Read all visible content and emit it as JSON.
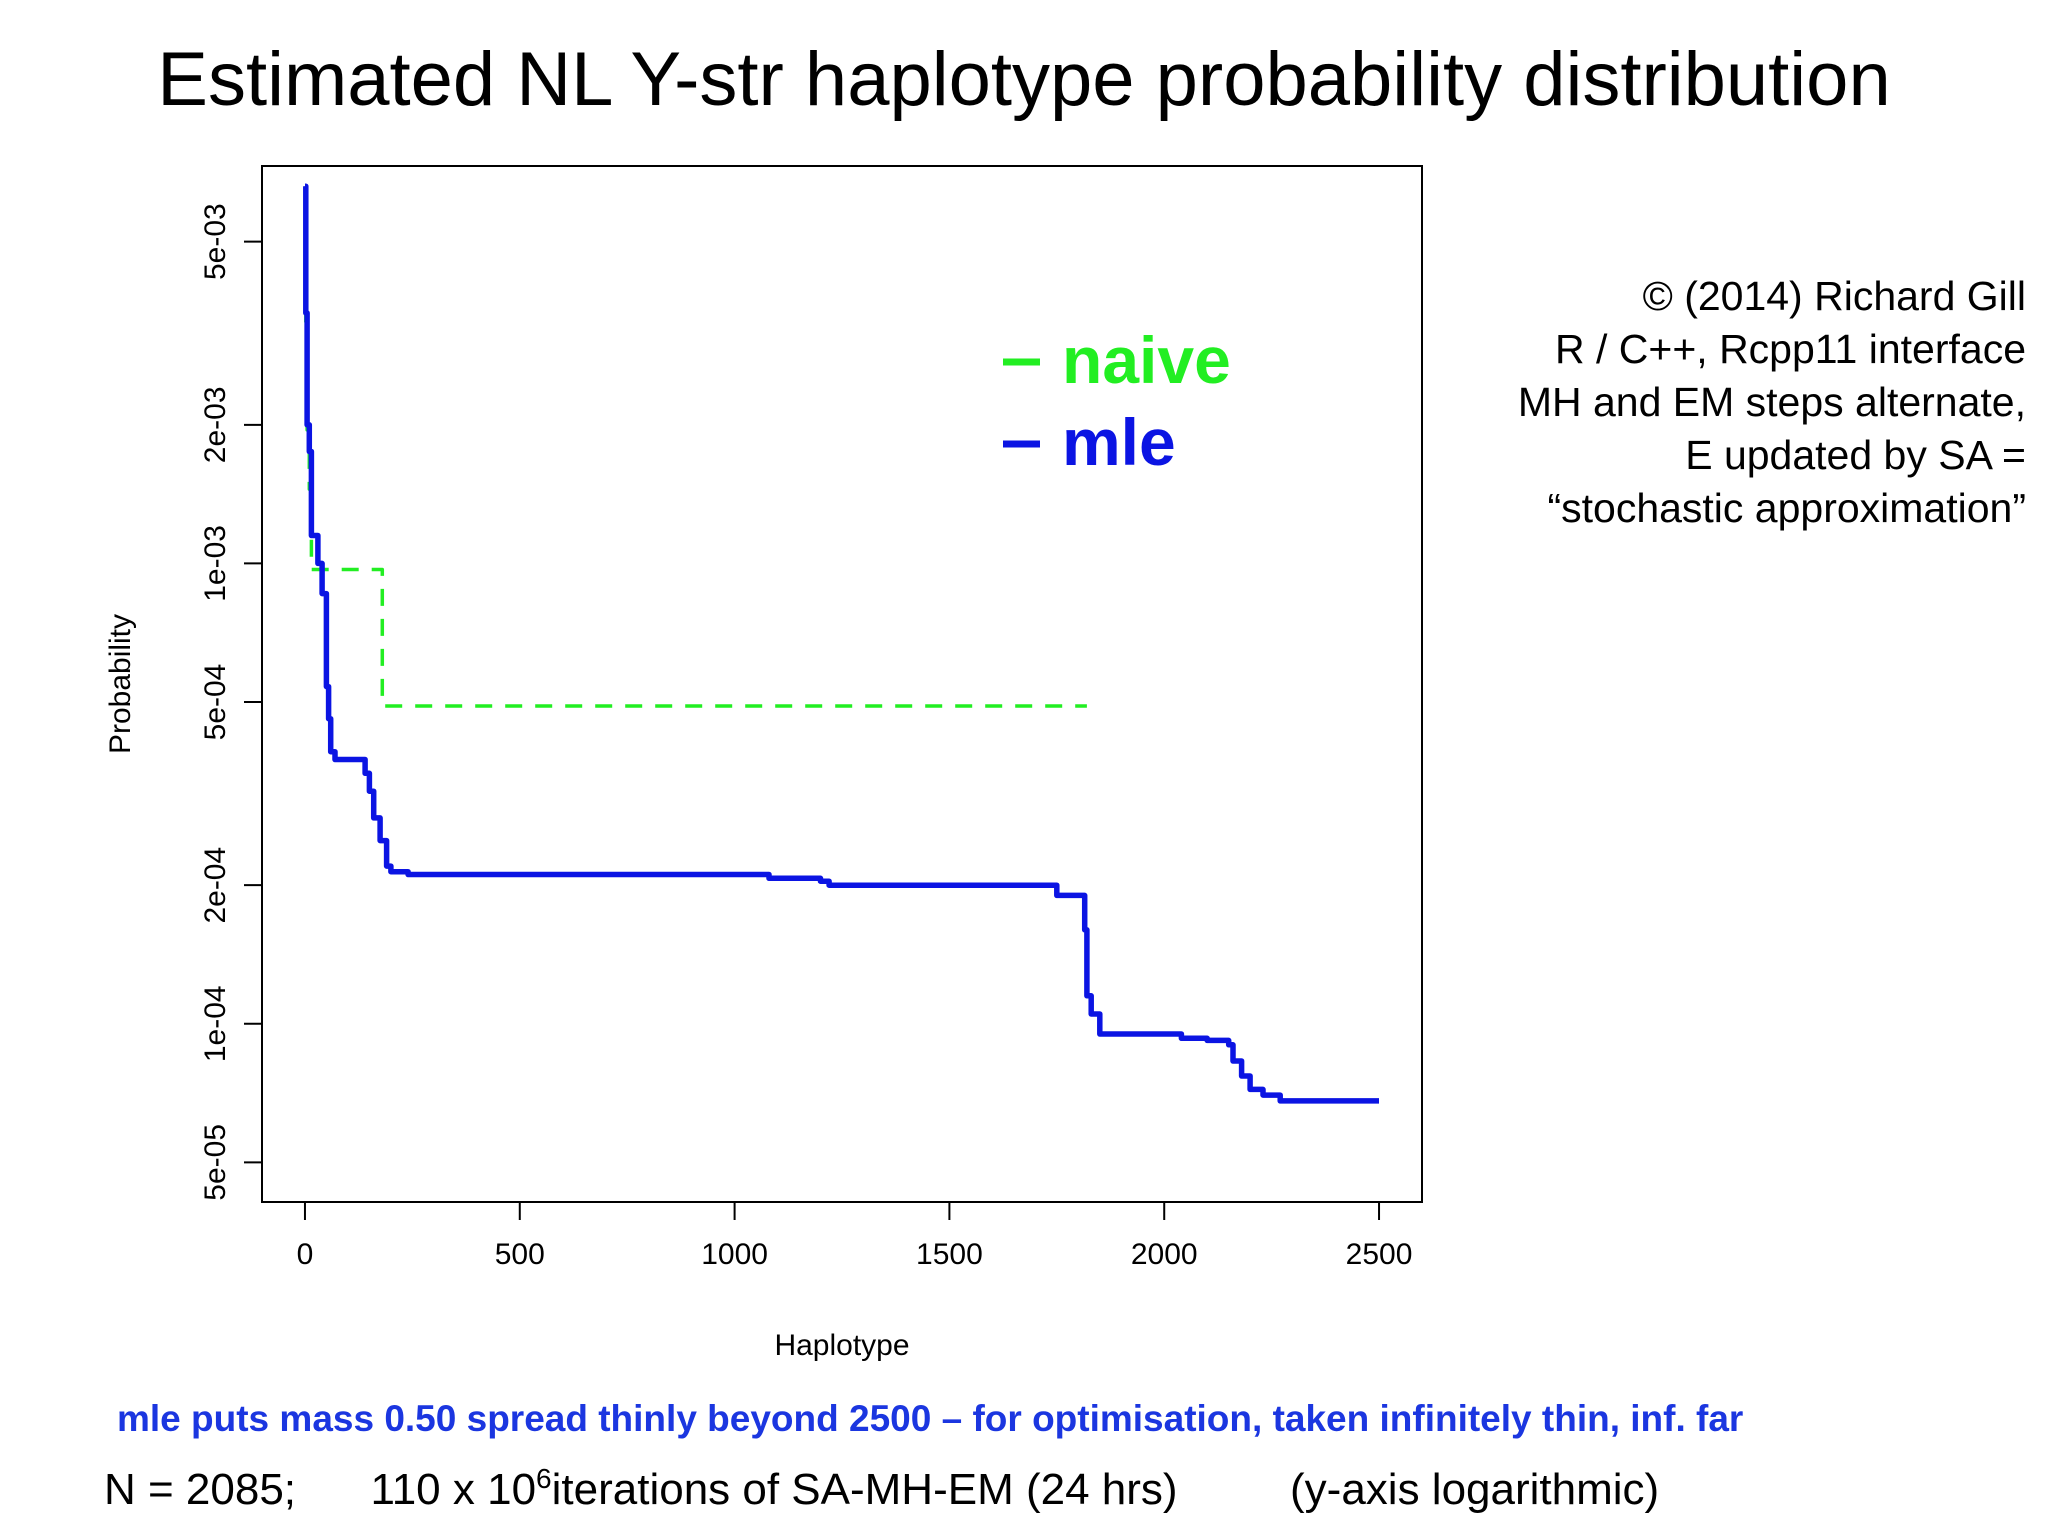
{
  "title": "Estimated NL Y-str haplotype probability distribution",
  "credits": [
    "© (2014) Richard Gill",
    "R / C++, Rcpp11 interface",
    "MH and EM steps alternate,",
    "E updated by SA =",
    "“stochastic approximation”"
  ],
  "note": "mle puts mass 0.50 spread thinly beyond 2500 – for optimisation, taken infinitely thin, inf. far",
  "footer": {
    "part1": "N = 2085;",
    "part2": "110 x 10",
    "exponent": "6",
    "part3": " iterations of SA-MH-EM (24 hrs)",
    "part4": "(y-axis logarithmic)"
  },
  "colors": {
    "naive": "#22ee22",
    "mle": "#0b14e3",
    "note": "#1b36e0"
  },
  "chart_data": {
    "type": "line",
    "xlabel": "Haplotype",
    "ylabel": "Probability",
    "xlim": [
      -100,
      2600
    ],
    "ylim": [
      4.1e-05,
      0.0073
    ],
    "y_scale": "log",
    "x_ticks": [
      0,
      500,
      1000,
      1500,
      2000,
      2500
    ],
    "x_tick_labels": [
      "0",
      "500",
      "1000",
      "1500",
      "2000",
      "2500"
    ],
    "y_ticks": [
      5e-05,
      0.0001,
      0.0002,
      0.0005,
      0.001,
      0.002,
      0.005
    ],
    "y_tick_labels": [
      "5e-05",
      "1e-04",
      "2e-04",
      "5e-04",
      "1e-03",
      "2e-03",
      "5e-03"
    ],
    "legend_position": "top-right",
    "series": [
      {
        "name": "naive",
        "style": "dashed",
        "x": [
          0,
          2,
          2,
          5,
          5,
          10,
          10,
          15,
          15,
          45,
          45,
          180,
          180,
          1820
        ],
        "y": [
          0.0066,
          0.0066,
          0.0033,
          0.0033,
          0.00195,
          0.00195,
          0.00145,
          0.00145,
          0.00097,
          0.00097,
          0.00097,
          0.00097,
          0.00049,
          0.00049
        ]
      },
      {
        "name": "mle",
        "style": "solid",
        "x": [
          0,
          2,
          2,
          5,
          5,
          10,
          10,
          15,
          15,
          30,
          30,
          40,
          40,
          50,
          50,
          55,
          55,
          60,
          60,
          70,
          70,
          140,
          140,
          150,
          150,
          160,
          160,
          175,
          175,
          190,
          190,
          200,
          200,
          240,
          240,
          380,
          380,
          1080,
          1080,
          1200,
          1200,
          1220,
          1220,
          1750,
          1750,
          1815,
          1815,
          1820,
          1820,
          1830,
          1830,
          1850,
          1850,
          2040,
          2040,
          2100,
          2100,
          2150,
          2150,
          2160,
          2160,
          2180,
          2180,
          2200,
          2200,
          2230,
          2230,
          2270,
          2270,
          2500
        ],
        "y": [
          0.0066,
          0.0066,
          0.0035,
          0.0035,
          0.002,
          0.002,
          0.00175,
          0.00175,
          0.00115,
          0.00115,
          0.001,
          0.001,
          0.00086,
          0.00086,
          0.00054,
          0.00054,
          0.00046,
          0.00046,
          0.00039,
          0.00039,
          0.000375,
          0.000375,
          0.00035,
          0.00035,
          0.00032,
          0.00032,
          0.00028,
          0.00028,
          0.00025,
          0.00025,
          0.00022,
          0.00022,
          0.000214,
          0.000214,
          0.000211,
          0.000211,
          0.000211,
          0.000211,
          0.000207,
          0.000207,
          0.000204,
          0.000204,
          0.0002,
          0.0002,
          0.00019,
          0.00019,
          0.00016,
          0.00016,
          0.000115,
          0.000115,
          0.000105,
          0.000105,
          9.5e-05,
          9.5e-05,
          9.3e-05,
          9.3e-05,
          9.2e-05,
          9.2e-05,
          9e-05,
          9e-05,
          8.3e-05,
          8.3e-05,
          7.7e-05,
          7.7e-05,
          7.2e-05,
          7.2e-05,
          7e-05,
          7e-05,
          6.8e-05,
          6.8e-05
        ]
      }
    ]
  }
}
